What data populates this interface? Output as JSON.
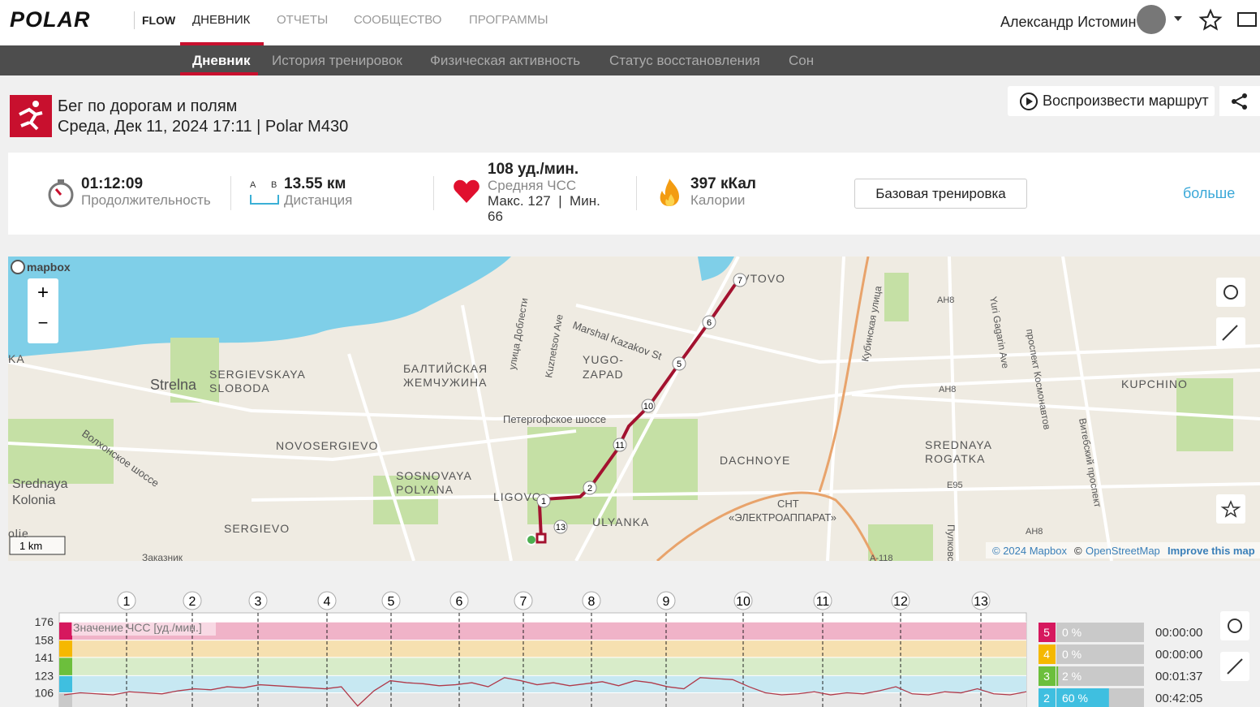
{
  "header": {
    "brand": "POLAR",
    "product": "FLOW",
    "nav": [
      "ДНЕВНИК",
      "ОТЧЕТЫ",
      "СООБЩЕСТВО",
      "ПРОГРАММЫ"
    ],
    "user": "Александр Истомин"
  },
  "subnav": [
    "Дневник",
    "История тренировок",
    "Физическая активность",
    "Статус восстановления",
    "Сон"
  ],
  "session": {
    "title": "Бег по дорогам и полям",
    "subtitle": "Среда, Дек 11, 2024 17:11 | Polar M430",
    "replay": "Воспроизвести маршрут"
  },
  "summary": {
    "duration": {
      "value": "01:12:09",
      "label": "Продолжительность"
    },
    "distance": {
      "a": "A",
      "b": "B",
      "value": "13.55 км",
      "label": "Дистанция"
    },
    "heart_rate": {
      "value": "108 уд./мин.",
      "label": "Средняя ЧСС",
      "range": "Макс. 127  |  Мин. 66"
    },
    "calories": {
      "value": "397 кКал",
      "label": "Калории"
    },
    "training": "Базовая тренировка",
    "more": "больше"
  },
  "map": {
    "logo": "mapbox",
    "scale": "1 km",
    "attribution": [
      "© 2024 Mapbox",
      "©",
      "OpenStreetMap",
      "Improve this map"
    ],
    "labels": [
      "AVTOVO",
      "Marshal Kazakov St",
      "YUGO-",
      "ZAPAD",
      "БАЛТИЙСКАЯ",
      "ЖЕМЧУЖИНА",
      "SERGIEVSKAYA",
      "SLOBODA",
      "Strelna",
      "NOVOSERGIEVO",
      "SOSNOVAYA",
      "POLYANA",
      "LIGOVO",
      "ULYANKA",
      "DACHNOYE",
      "СНТ",
      "«ЭЛЕКТРОАППАРАТ»",
      "SERGIEVO",
      "Srednaya",
      "Kolonia",
      "Волхонское шоссе",
      "Петергофское шоссе",
      "улица Доблести",
      "Kuznetsov Ave",
      "Кубинская улица",
      "Yuri Gagarin Ave",
      "проспект Космонавтов",
      "Витебский проспект",
      "KUPCHINO",
      "SREDNAYA",
      "ROGATKA",
      "AH8",
      "AH8",
      "AH8",
      "E95",
      "A-118",
      "Пулковское",
      "Заказник",
      "KA",
      "olie"
    ],
    "lap_markers": [
      "7",
      "6",
      "5",
      "10",
      "11",
      "2",
      "1",
      "13"
    ]
  },
  "hr_chart": {
    "series_label": "Значение ЧСС [уд./мин.]",
    "ylim": [
      92,
      185
    ],
    "yticks": [
      176,
      158,
      141,
      123,
      106
    ],
    "laps": [
      "1",
      "2",
      "3",
      "4",
      "5",
      "6",
      "7",
      "8",
      "9",
      "10",
      "11",
      "12",
      "13"
    ],
    "values": [
      104,
      106,
      105,
      104,
      107,
      106,
      105,
      108,
      110,
      109,
      112,
      111,
      114,
      113,
      112,
      111,
      110,
      112,
      93,
      108,
      118,
      116,
      115,
      113,
      114,
      116,
      112,
      121,
      118,
      114,
      116,
      113,
      115,
      117,
      113,
      118,
      116,
      112,
      110,
      121,
      120,
      119,
      112,
      106,
      104,
      105,
      107,
      104,
      106,
      105,
      108,
      112,
      105,
      104,
      107,
      106,
      110,
      105,
      104,
      107
    ],
    "zones": [
      {
        "zone": "5",
        "percent": 0,
        "percent_label": "0 %",
        "time": "00:00:00"
      },
      {
        "zone": "4",
        "percent": 0,
        "percent_label": "0 %",
        "time": "00:00:00"
      },
      {
        "zone": "3",
        "percent": 2,
        "percent_label": "2 %",
        "time": "00:01:37"
      },
      {
        "zone": "2",
        "percent": 60,
        "percent_label": "60 %",
        "time": "00:42:05"
      }
    ]
  }
}
